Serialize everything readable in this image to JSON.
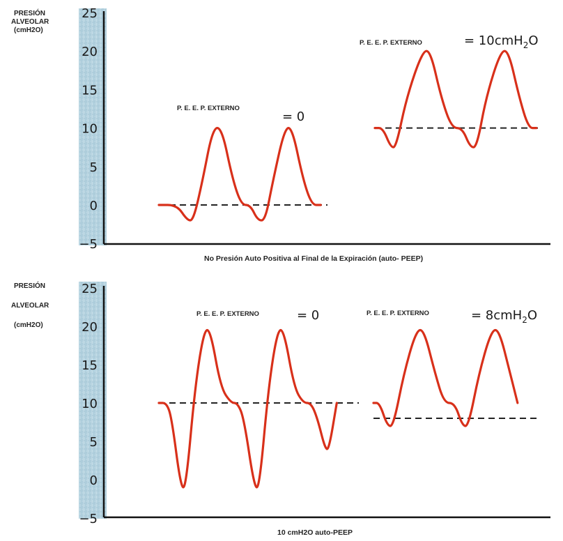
{
  "chart_data": [
    {
      "type": "line",
      "ylabel_lines": [
        "PRESIÓN",
        "ALVEOLAR",
        "(cmH2O)"
      ],
      "yticks": [
        "25",
        "20",
        "15",
        "10",
        "5",
        "0",
        "−5"
      ],
      "ylim": [
        -5,
        25
      ],
      "caption": "No Presión Auto Positiva al Final de la Expiración (auto- PEEP)",
      "annotations": [
        {
          "label": "P. E. E. P. EXTERNO",
          "value": "= 0"
        },
        {
          "label": "P. E. E. P. EXTERNO",
          "value": "= 10cmH",
          "sub": "2",
          "tail": "O"
        }
      ],
      "series": [
        {
          "baseline": 0,
          "points": [
            [
              0,
              0
            ],
            [
              1.2,
              0
            ],
            [
              1.9,
              -2
            ],
            [
              2.3,
              -2
            ],
            [
              2.9,
              3
            ],
            [
              3.6,
              10
            ],
            [
              4.2,
              10
            ],
            [
              4.9,
              3.5
            ],
            [
              5.5,
              0
            ],
            [
              6.1,
              0
            ],
            [
              6.6,
              -2
            ],
            [
              7.1,
              -2
            ],
            [
              7.6,
              3
            ],
            [
              8.4,
              10
            ],
            [
              8.9,
              10
            ],
            [
              9.6,
              3.5
            ],
            [
              10.2,
              0
            ],
            [
              10.8,
              0
            ]
          ]
        },
        {
          "baseline": 10,
          "points": [
            [
              0,
              10
            ],
            [
              0.6,
              10
            ],
            [
              1.2,
              7.5
            ],
            [
              1.6,
              7.5
            ],
            [
              2.4,
              14
            ],
            [
              3.6,
              20
            ],
            [
              4.2,
              20
            ],
            [
              5,
              14
            ],
            [
              5.8,
              10
            ],
            [
              6.6,
              10
            ],
            [
              7.2,
              7.5
            ],
            [
              7.7,
              7.5
            ],
            [
              8.4,
              14
            ],
            [
              9.5,
              20
            ],
            [
              10.1,
              20
            ],
            [
              10.9,
              14
            ],
            [
              11.6,
              10
            ],
            [
              12.2,
              10
            ]
          ]
        }
      ]
    },
    {
      "type": "line",
      "ylabel_lines": [
        "PRESIÓN",
        "ALVEOLAR",
        "(cmH2O)"
      ],
      "yticks": [
        "25",
        "20",
        "15",
        "10",
        "5",
        "0",
        "−5"
      ],
      "ylim": [
        -5,
        25
      ],
      "caption": "10  cmH2O auto-PEEP",
      "annotations": [
        {
          "label": "P. E. E. P. EXTERNO",
          "value": "= 0"
        },
        {
          "label": "P. E. E. P. EXTERNO",
          "value": "= 8cmH",
          "sub": "2",
          "tail": "O"
        }
      ],
      "series": [
        {
          "baseline": 10,
          "points": [
            [
              0,
              10
            ],
            [
              0.6,
              10
            ],
            [
              1,
              8
            ],
            [
              1.7,
              -1
            ],
            [
              2.1,
              -1
            ],
            [
              2.8,
              12
            ],
            [
              3.5,
              19.5
            ],
            [
              4,
              19.5
            ],
            [
              4.8,
              12
            ],
            [
              5.6,
              10
            ],
            [
              6.1,
              10
            ],
            [
              6.6,
              8
            ],
            [
              7.4,
              -1
            ],
            [
              7.8,
              -1
            ],
            [
              8.5,
              12
            ],
            [
              9.2,
              19.5
            ],
            [
              9.7,
              19.5
            ],
            [
              10.5,
              12
            ],
            [
              11.2,
              10
            ],
            [
              11.8,
              10
            ],
            [
              12.3,
              8
            ],
            [
              12.9,
              4
            ],
            [
              13.2,
              4
            ],
            [
              13.8,
              10
            ]
          ]
        },
        {
          "baseline": 8,
          "points": [
            [
              0,
              10
            ],
            [
              0.4,
              10
            ],
            [
              0.9,
              7
            ],
            [
              1.3,
              7
            ],
            [
              2,
              14
            ],
            [
              2.8,
              19.5
            ],
            [
              3.3,
              19.5
            ],
            [
              4,
              14
            ],
            [
              4.6,
              10
            ],
            [
              5.3,
              10
            ],
            [
              5.8,
              7
            ],
            [
              6.2,
              7
            ],
            [
              6.9,
              14
            ],
            [
              7.7,
              19.5
            ],
            [
              8.2,
              19.5
            ],
            [
              8.9,
              14
            ],
            [
              9.4,
              10
            ]
          ]
        }
      ]
    }
  ],
  "colors": {
    "curve": "#d8301a",
    "axis": "#111111",
    "dash": "#222222",
    "band": "#b6d3e0"
  }
}
